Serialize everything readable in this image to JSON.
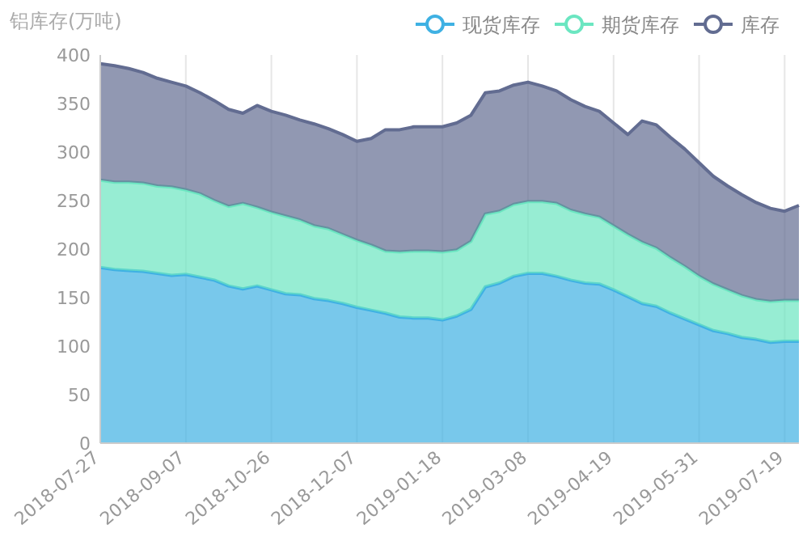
{
  "chart_data": {
    "type": "area",
    "stacked": true,
    "ylabel": "铝库存(万吨)",
    "legend": "top right",
    "grid": "x",
    "marker": "none",
    "line_style": "solid",
    "ylim": [
      0,
      400
    ],
    "yticks": [
      0,
      50,
      100,
      150,
      200,
      250,
      300,
      350,
      400
    ],
    "categories": [
      "2018-07-27",
      null,
      null,
      null,
      null,
      null,
      "2018-09-07",
      null,
      null,
      null,
      null,
      null,
      "2018-10-26",
      null,
      null,
      null,
      null,
      null,
      "2018-12-07",
      null,
      null,
      null,
      null,
      null,
      "2019-01-18",
      null,
      null,
      null,
      null,
      null,
      "2019-03-08",
      null,
      null,
      null,
      null,
      null,
      "2019-04-19",
      null,
      null,
      null,
      null,
      null,
      "2019-05-31",
      null,
      null,
      null,
      null,
      null,
      "2019-07-19",
      null
    ],
    "series": [
      {
        "name": "现货库存",
        "color": "#3fb1e3",
        "values": [
          181,
          179,
          178,
          177,
          175,
          173,
          174,
          171,
          168,
          162,
          159,
          162,
          158,
          154,
          153,
          149,
          147,
          144,
          140,
          137,
          134,
          130,
          129,
          129,
          127,
          131,
          138,
          161,
          165,
          172,
          175,
          175,
          172,
          168,
          165,
          164,
          158,
          151,
          144,
          141,
          134,
          128,
          122,
          116,
          113,
          109,
          107,
          104,
          105,
          105
        ]
      },
      {
        "name": "期货库存",
        "color": "#6be6c1",
        "values": [
          90,
          90,
          91,
          91,
          90,
          91,
          87,
          86,
          82,
          82,
          88,
          81,
          80,
          80,
          77,
          75,
          74,
          71,
          69,
          67,
          64,
          67,
          69,
          69,
          70,
          68,
          70,
          75,
          74,
          74,
          74,
          74,
          75,
          72,
          71,
          69,
          66,
          64,
          63,
          60,
          57,
          54,
          50,
          48,
          45,
          43,
          41,
          42,
          42,
          42
        ]
      },
      {
        "name": "库存",
        "color": "#626c91",
        "values": [
          120,
          120,
          117,
          114,
          111,
          108,
          107,
          104,
          103,
          100,
          93,
          105,
          104,
          104,
          103,
          105,
          103,
          103,
          102,
          110,
          125,
          126,
          128,
          128,
          129,
          131,
          130,
          125,
          124,
          123,
          123,
          119,
          116,
          114,
          111,
          109,
          106,
          103,
          125,
          127,
          124,
          121,
          117,
          111,
          107,
          104,
          100,
          96,
          92,
          98
        ]
      }
    ]
  }
}
